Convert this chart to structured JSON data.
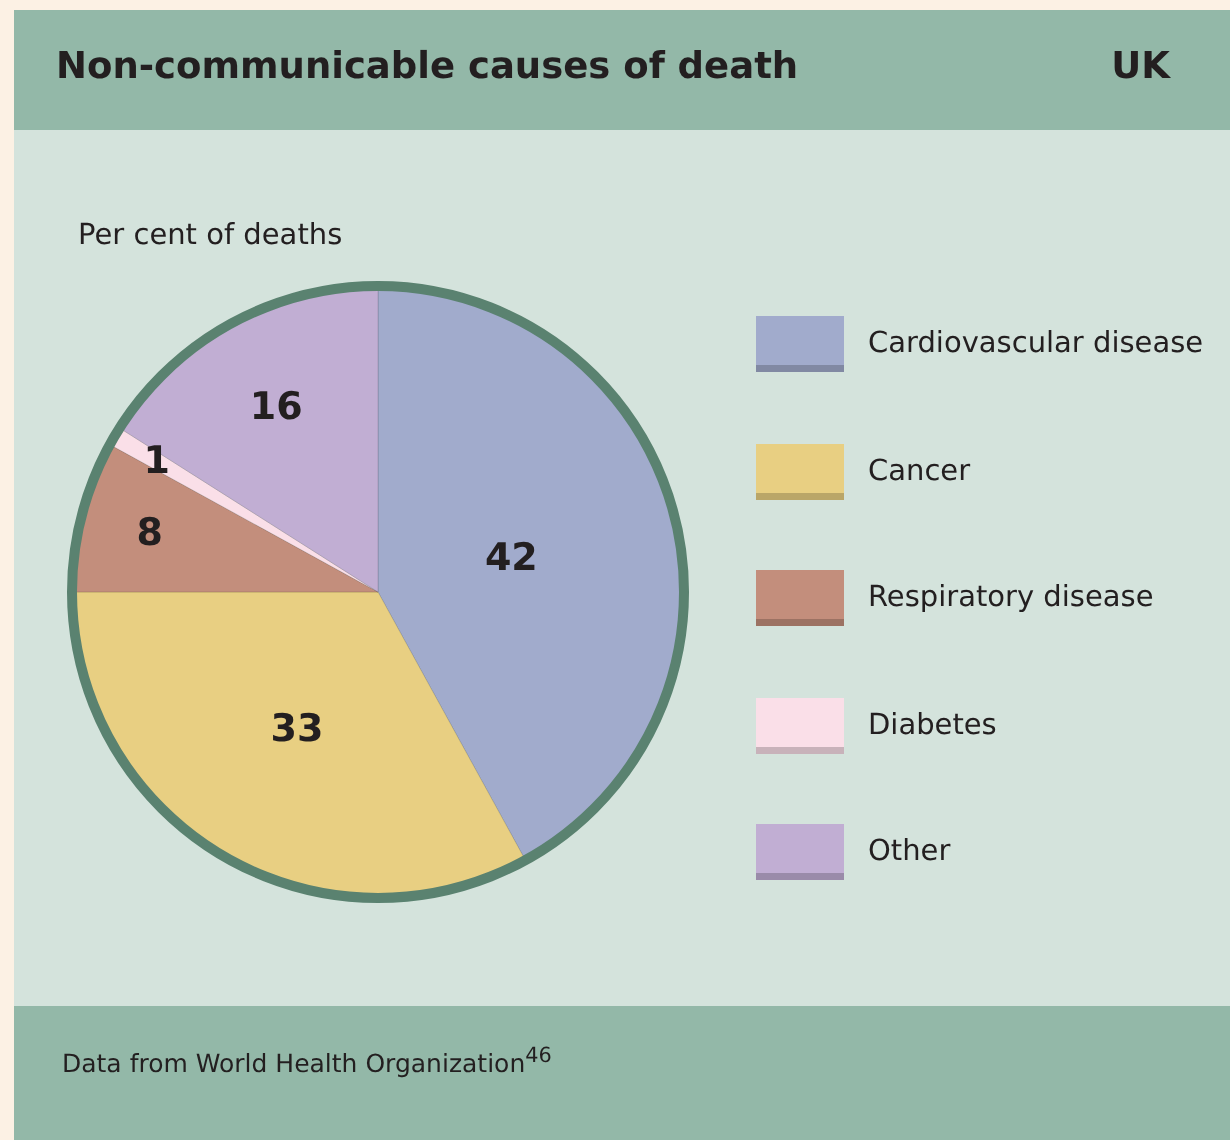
{
  "chart_data": {
    "type": "pie",
    "title": "Non-communicable causes of death",
    "subtitle": "UK",
    "annotations": [
      "Per cent of deaths",
      "Data from World Health Organization$^{46}$"
    ],
    "categories": [
      "Cardiovascular disease",
      "Cancer",
      "Respiratory disease",
      "Diabetes",
      "Other"
    ],
    "values": [
      42,
      33,
      8,
      1,
      16
    ],
    "colors": [
      "#a1abcc",
      "#e8cf82",
      "#c38e7c",
      "#fadfe8",
      "#c1aed3"
    ],
    "data_labels": true,
    "legend": "right"
  }
}
